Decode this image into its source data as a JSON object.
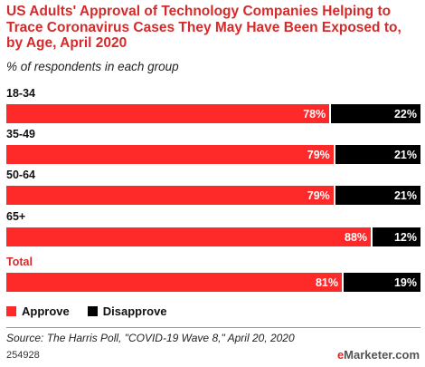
{
  "title": "US Adults' Approval of Technology Companies Helping to Trace Coronavirus Cases They May Have Been Exposed to, by Age, April 2020",
  "subtitle": "% of respondents in each group",
  "source": "Source: The Harris Poll, \"COVID-19 Wave 8,\" April 20, 2020",
  "footer_id": "254928",
  "brand": {
    "prefix": "e",
    "rest": "Marketer",
    "suffix": ".com"
  },
  "colors": {
    "approve": "#fe2a2a",
    "disapprove": "#000000",
    "accent": "#d62a2a"
  },
  "chart_data": {
    "type": "bar",
    "orientation": "horizontal",
    "stacked": true,
    "categories": [
      "18-34",
      "35-49",
      "50-64",
      "65+",
      "Total"
    ],
    "series": [
      {
        "name": "Approve",
        "values": [
          78,
          79,
          79,
          88,
          81
        ],
        "labels": [
          "78%",
          "79%",
          "79%",
          "88%",
          "81%"
        ]
      },
      {
        "name": "Disapprove",
        "values": [
          22,
          21,
          21,
          12,
          19
        ],
        "labels": [
          "22%",
          "21%",
          "21%",
          "12%",
          "19%"
        ]
      }
    ],
    "xlim": [
      0,
      100
    ],
    "legend": "bottom-left",
    "grid": false
  }
}
